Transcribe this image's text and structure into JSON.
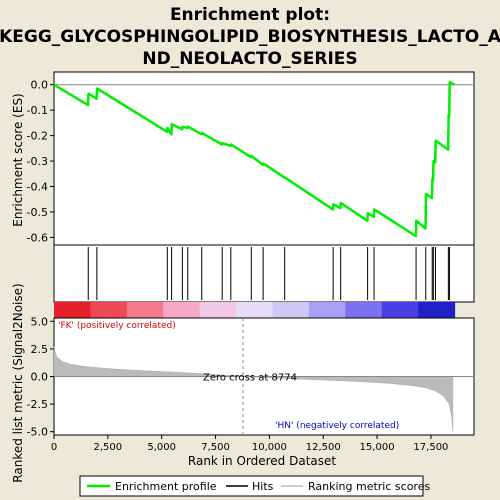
{
  "chart_data": {
    "type": "line",
    "title_lines": [
      "Enrichment plot:",
      "KEGG_GLYCOSPHINGOLIPID_BIOSYNTHESIS_LACTO_A",
      "ND_NEOLACTO_SERIES"
    ],
    "es_panel": {
      "ylabel": "Enrichment score (ES)",
      "ylim": [
        -0.63,
        0.05
      ],
      "yticks": [
        0.0,
        -0.1,
        -0.2,
        -0.3,
        -0.4,
        -0.5,
        -0.6
      ],
      "ytick_labels": [
        "0.0",
        "-0.1",
        "-0.2",
        "-0.3",
        "-0.4",
        "-0.5",
        "-0.6"
      ],
      "series": [
        {
          "name": "Enrichment profile",
          "color": "#00ee00",
          "points": [
            [
              0,
              0.0
            ],
            [
              1580,
              -0.08
            ],
            [
              1600,
              -0.035
            ],
            [
              1980,
              -0.055
            ],
            [
              2000,
              -0.015
            ],
            [
              5250,
              -0.185
            ],
            [
              5270,
              -0.17
            ],
            [
              5450,
              -0.195
            ],
            [
              5470,
              -0.155
            ],
            [
              5950,
              -0.175
            ],
            [
              5970,
              -0.165
            ],
            [
              6200,
              -0.17
            ],
            [
              6220,
              -0.165
            ],
            [
              6850,
              -0.195
            ],
            [
              6870,
              -0.19
            ],
            [
              7800,
              -0.235
            ],
            [
              7820,
              -0.23
            ],
            [
              8200,
              -0.24
            ],
            [
              8220,
              -0.235
            ],
            [
              9150,
              -0.285
            ],
            [
              9170,
              -0.28
            ],
            [
              9700,
              -0.315
            ],
            [
              9720,
              -0.31
            ],
            [
              10700,
              -0.365
            ],
            [
              10720,
              -0.365
            ],
            [
              12950,
              -0.49
            ],
            [
              12970,
              -0.47
            ],
            [
              13300,
              -0.485
            ],
            [
              13320,
              -0.465
            ],
            [
              14550,
              -0.535
            ],
            [
              14570,
              -0.505
            ],
            [
              14850,
              -0.52
            ],
            [
              14870,
              -0.49
            ],
            [
              16800,
              -0.595
            ],
            [
              16820,
              -0.535
            ],
            [
              17250,
              -0.565
            ],
            [
              17270,
              -0.43
            ],
            [
              17550,
              -0.445
            ],
            [
              17570,
              -0.37
            ],
            [
              17600,
              -0.375
            ],
            [
              17620,
              -0.3
            ],
            [
              17700,
              -0.305
            ],
            [
              17720,
              -0.22
            ],
            [
              18300,
              -0.255
            ],
            [
              18320,
              -0.12
            ],
            [
              18350,
              -0.125
            ],
            [
              18370,
              0.01
            ],
            [
              18600,
              0.0
            ]
          ]
        }
      ]
    },
    "hits": {
      "name": "Hits",
      "positions": [
        1590,
        1990,
        5260,
        5460,
        5960,
        6210,
        6860,
        7810,
        8210,
        9160,
        9710,
        10710,
        12960,
        13310,
        14560,
        14860,
        16810,
        17260,
        17560,
        17610,
        17710,
        18310,
        18360
      ]
    },
    "ranking_bar_colors": [
      "#e8202a",
      "#ee4a55",
      "#f27a8c",
      "#f6a8c6",
      "#f2c8e8",
      "#e6dcf6",
      "#cfc8f6",
      "#a8a0f4",
      "#7a72ee",
      "#4840e4",
      "#2020c8"
    ],
    "rank_panel": {
      "ylabel": "Ranked list metric (Signal2Noise)",
      "xlabel": "Rank in Ordered Dataset",
      "ylim": [
        -5.3,
        5.3
      ],
      "yticks": [
        5.0,
        2.5,
        0.0,
        -2.5,
        -5.0
      ],
      "ytick_labels": [
        "5.0",
        "2.5",
        "0.0",
        "-2.5",
        "-5.0"
      ],
      "xlim": [
        0,
        19500
      ],
      "xticks": [
        0,
        2500,
        5000,
        7500,
        10000,
        12500,
        15000,
        17500
      ],
      "xtick_labels": [
        "0",
        "2,500",
        "5,000",
        "7,500",
        "10,000",
        "12,500",
        "15,000",
        "17,500"
      ],
      "zero_cross": 8774,
      "metric_profile": [
        [
          0,
          2.7
        ],
        [
          50,
          2.2
        ],
        [
          150,
          1.75
        ],
        [
          400,
          1.35
        ],
        [
          800,
          1.1
        ],
        [
          1500,
          0.9
        ],
        [
          2500,
          0.72
        ],
        [
          3500,
          0.6
        ],
        [
          5000,
          0.45
        ],
        [
          6500,
          0.3
        ],
        [
          8000,
          0.12
        ],
        [
          8774,
          0.0
        ],
        [
          10000,
          -0.12
        ],
        [
          11500,
          -0.25
        ],
        [
          13000,
          -0.35
        ],
        [
          14500,
          -0.5
        ],
        [
          15500,
          -0.62
        ],
        [
          16500,
          -0.8
        ],
        [
          17200,
          -1.0
        ],
        [
          17700,
          -1.3
        ],
        [
          18100,
          -1.8
        ],
        [
          18350,
          -2.5
        ],
        [
          18450,
          -3.5
        ],
        [
          18500,
          -4.6
        ],
        [
          18520,
          -5.0
        ]
      ],
      "annotations": {
        "zero_cross_text": "Zero cross at 8774",
        "pos_label": "'FK' (positively correlated)",
        "neg_label": "'HN' (negatively correlated)",
        "pos_color": "#dd0000",
        "neg_color": "#0000cc"
      }
    },
    "legend": {
      "placement": "bottom",
      "items": [
        {
          "name": "Enrichment profile",
          "color": "#00ee00"
        },
        {
          "name": "Hits",
          "color": "#000000"
        },
        {
          "name": "Ranking metric scores",
          "color": "#bbbbbb"
        }
      ]
    }
  }
}
